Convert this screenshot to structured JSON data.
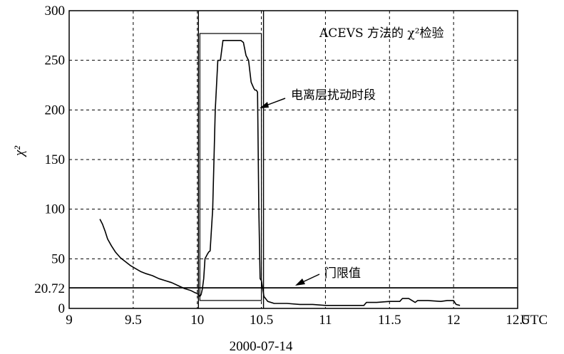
{
  "chart_data": {
    "type": "line",
    "title": "ACEVS 方法的 χ²检验",
    "xlabel": "2000-07-14",
    "x_unit": "UTC",
    "ylabel": "χ²",
    "xlim": [
      9,
      12.5
    ],
    "ylim": [
      0,
      300
    ],
    "x_ticks": [
      "9",
      "9.5",
      "10",
      "10.5",
      "11",
      "11.5",
      "12",
      "12.5"
    ],
    "y_ticks": [
      "0",
      "50",
      "100",
      "150",
      "200",
      "250",
      "300"
    ],
    "extra_y_tick": "20.72",
    "grid": true,
    "threshold": {
      "value": 20.72,
      "label": "门限值"
    },
    "disturbance_window": {
      "x_start": 10.02,
      "x_end": 10.5,
      "y_top": 277,
      "y_bottom": 8,
      "label": "电离层扰动时段"
    },
    "series": [
      {
        "x": [
          9.24,
          9.26,
          9.28,
          9.3,
          9.33,
          9.36,
          9.4,
          9.44,
          9.48,
          9.52,
          9.56,
          9.6,
          9.65,
          9.7,
          9.75,
          9.8,
          9.85,
          9.9,
          9.95,
          9.98,
          10.0,
          10.02,
          10.03,
          10.04,
          10.05,
          10.06,
          10.08,
          10.09,
          10.1,
          10.12,
          10.14,
          10.16,
          10.18,
          10.2,
          10.23,
          10.26,
          10.3,
          10.34,
          10.36,
          10.38,
          10.4,
          10.42,
          10.44,
          10.45,
          10.46,
          10.47,
          10.48,
          10.49,
          10.5,
          10.51,
          10.52,
          10.55,
          10.6,
          10.7,
          10.8,
          10.9,
          11.0,
          11.1,
          11.2,
          11.3,
          11.32,
          11.4,
          11.5,
          11.58,
          11.6,
          11.65,
          11.7,
          11.72,
          11.8,
          11.9,
          11.95,
          12.0,
          12.02,
          12.05
        ],
        "y": [
          90,
          85,
          78,
          70,
          63,
          57,
          51,
          47,
          43,
          40,
          37,
          35,
          33,
          30,
          28,
          26,
          23,
          20,
          18,
          16,
          15,
          12,
          14,
          20,
          30,
          50,
          55,
          57,
          58,
          100,
          200,
          250,
          250,
          270,
          270,
          270,
          270,
          270,
          268,
          255,
          250,
          228,
          222,
          220,
          220,
          218,
          100,
          30,
          28,
          20,
          12,
          7,
          5,
          5,
          4,
          4,
          3,
          3,
          3,
          3,
          6,
          6,
          7,
          7,
          10,
          10,
          6,
          8,
          8,
          7,
          8,
          8,
          4,
          3
        ]
      }
    ]
  }
}
